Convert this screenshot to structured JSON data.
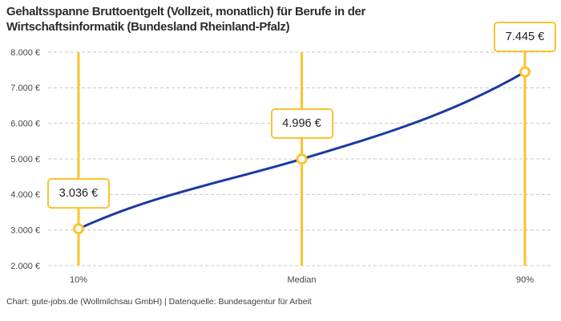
{
  "title": {
    "text": "Gehaltsspanne Bruttoentgelt (Vollzeit, monatlich) für Berufe in der Wirtschaftsinformatik (Bundesland Rheinland-Pfalz)",
    "lines": [
      "Gehaltsspanne Bruttoentgelt (Vollzeit, monatlich) für Berufe in der",
      "Wirtschaftsinformatik (Bundesland Rheinland-Pfalz)"
    ]
  },
  "chart_data": {
    "type": "line",
    "title": "Gehaltsspanne Bruttoentgelt (Vollzeit, monatlich) für Berufe in der Wirtschaftsinformatik (Bundesland Rheinland-Pfalz)",
    "categories": [
      "10%",
      "Median",
      "90%"
    ],
    "values": [
      3036,
      4996,
      7445
    ],
    "point_labels": [
      "3.036 €",
      "4.996 €",
      "7.445 €"
    ],
    "series_description": "Salary percentile curve with highlighted vertical percentile lines",
    "ylim": [
      2000,
      8000
    ],
    "y_tick_step": 1000,
    "y_ticks": [
      {
        "value": 2000,
        "label": "2.000 €"
      },
      {
        "value": 3000,
        "label": "3.000 €"
      },
      {
        "value": 4000,
        "label": "4.000 €"
      },
      {
        "value": 5000,
        "label": "5.000 €"
      },
      {
        "value": 6000,
        "label": "6.000 €"
      },
      {
        "value": 7000,
        "label": "7.000 €"
      },
      {
        "value": 8000,
        "label": "8.000 €"
      }
    ],
    "grid": "horizontal-dashed",
    "legend": "none",
    "colors": {
      "line": "#1c39a1",
      "highlight": "#fbc32d",
      "grid": "#c8c8c8",
      "axis_text": "#474747",
      "label_text": "#1f1f1f",
      "title_text": "#2d2d2d",
      "marker_fill": "#ffffff"
    }
  },
  "footer": {
    "credit": "Chart: gute-jobs.de (Wollmilchsau GmbH) | Datenquelle: Bundesagentur für Arbeit"
  }
}
